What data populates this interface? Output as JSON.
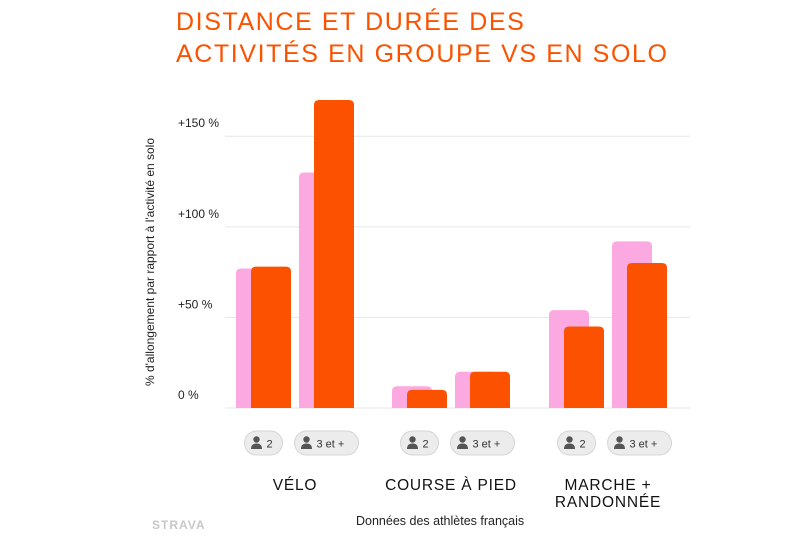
{
  "title_lines": [
    "Distance et durée des",
    "activités en groupe vs en solo"
  ],
  "ylabel": "% d'allongement par rapport à l'activité en solo",
  "footer": "Données des athlètes français",
  "watermark": "STRAVA",
  "colors": {
    "title": "#fc5200",
    "distance": "#fba9e0",
    "duree": "#fc5200",
    "grid": "#e6e6e6",
    "pill_bg": "#ececec"
  },
  "chart_data": {
    "type": "bar",
    "ylim": [
      0,
      170
    ],
    "yticks": [
      {
        "value": 0,
        "label": "0 %"
      },
      {
        "value": 50,
        "label": "+50 %"
      },
      {
        "value": 100,
        "label": "+100 %"
      },
      {
        "value": 150,
        "label": "+150 %"
      }
    ],
    "grid": true,
    "categories": [
      "VÉLO",
      "COURSE À PIED",
      "MARCHE + RANDONNÉE"
    ],
    "subcategories": [
      "2",
      "3 et +"
    ],
    "subcategory_icon": "person-icon",
    "series": [
      {
        "values": [
          [
            77,
            130
          ],
          [
            12,
            20
          ],
          [
            54,
            92
          ]
        ]
      },
      {
        "values": [
          [
            78,
            170
          ],
          [
            10,
            20
          ],
          [
            45,
            80
          ]
        ]
      }
    ]
  }
}
